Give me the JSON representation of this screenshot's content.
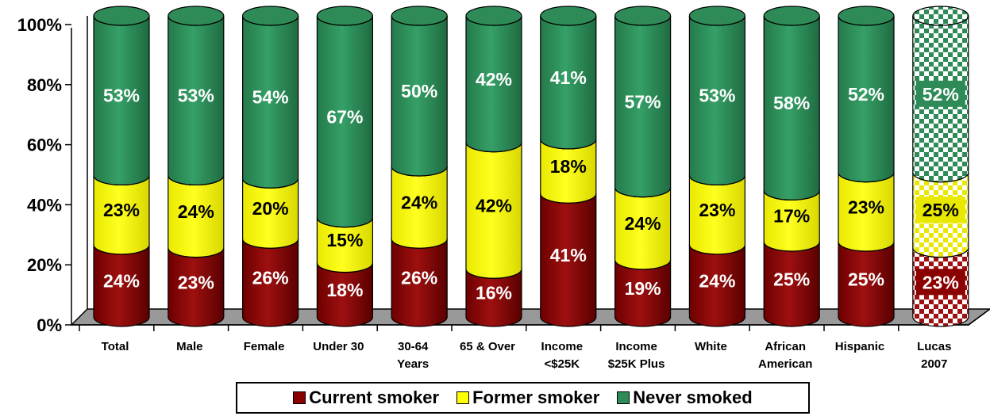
{
  "chart_data": {
    "type": "bar",
    "stacked": true,
    "y_ticks": [
      "0%",
      "20%",
      "40%",
      "60%",
      "80%",
      "100%"
    ],
    "ylim": [
      0,
      100
    ],
    "categories": [
      [
        "Total"
      ],
      [
        "Male"
      ],
      [
        "Female"
      ],
      [
        "Under 30"
      ],
      [
        "30-64",
        "Years"
      ],
      [
        "65 & Over"
      ],
      [
        "Income",
        "<$25K"
      ],
      [
        "Income",
        "$25K Plus"
      ],
      [
        "White"
      ],
      [
        "African",
        "American"
      ],
      [
        "Hispanic"
      ],
      [
        "Lucas",
        "2007"
      ]
    ],
    "series": [
      {
        "name": "Current smoker",
        "color": "#8B0000",
        "values": [
          24,
          23,
          26,
          18,
          26,
          16,
          41,
          19,
          24,
          25,
          25,
          23
        ]
      },
      {
        "name": "Former smoker",
        "color": "#FFFF00",
        "values": [
          23,
          24,
          20,
          15,
          24,
          42,
          18,
          24,
          23,
          17,
          23,
          25
        ]
      },
      {
        "name": "Never smoked",
        "color": "#2E8B57",
        "values": [
          53,
          53,
          54,
          67,
          50,
          42,
          41,
          57,
          53,
          58,
          52,
          52
        ]
      }
    ],
    "data_labels": [
      [
        "24%",
        "23%",
        "26%",
        "18%",
        "26%",
        "16%",
        "41%",
        "19%",
        "24%",
        "25%",
        "25%",
        "23%"
      ],
      [
        "23%",
        "24%",
        "20%",
        "15%",
        "24%",
        "42%",
        "18%",
        "24%",
        "23%",
        "17%",
        "23%",
        "25%"
      ],
      [
        "53%",
        "53%",
        "54%",
        "67%",
        "50%",
        "42%",
        "41%",
        "57%",
        "53%",
        "58%",
        "52%",
        "52%"
      ]
    ],
    "highlighted_category_index": 11,
    "legend_position": "bottom"
  },
  "legend": {
    "current": "Current smoker",
    "former": "Former smoker",
    "never": "Never smoked"
  }
}
